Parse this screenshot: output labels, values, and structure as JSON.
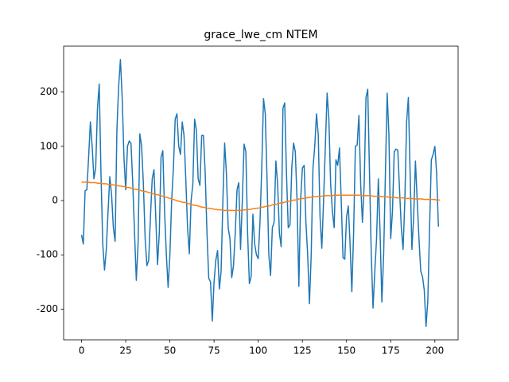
{
  "chart_data": {
    "type": "line",
    "title": "grace_lwe_cm NTEM",
    "xlim": [
      -10.15,
      213.15
    ],
    "xticks": [
      0,
      25,
      50,
      75,
      100,
      125,
      150,
      175,
      200
    ],
    "ylim": [
      -256.6,
      284.6
    ],
    "yticks": [
      -200,
      -100,
      0,
      100,
      200
    ],
    "series": [
      {
        "color": "#1f77b4",
        "values": [
          -63,
          -80,
          18,
          20,
          80,
          145,
          100,
          40,
          60,
          170,
          215,
          50,
          -80,
          -128,
          -90,
          -20,
          44,
          10,
          -50,
          -75,
          130,
          210,
          260,
          190,
          80,
          20,
          100,
          110,
          105,
          30,
          -60,
          -147,
          -80,
          123,
          100,
          30,
          -70,
          -120,
          -110,
          -30,
          40,
          57,
          -30,
          -118,
          -60,
          80,
          92,
          -20,
          -100,
          -160,
          -100,
          0,
          60,
          150,
          160,
          100,
          85,
          145,
          120,
          40,
          -50,
          -98,
          0,
          30,
          150,
          130,
          40,
          28,
          120,
          120,
          50,
          -60,
          -143,
          -150,
          -222,
          -150,
          -110,
          -92,
          -163,
          -130,
          0,
          106,
          50,
          -50,
          -70,
          -142,
          -120,
          -60,
          20,
          33,
          -90,
          0,
          104,
          90,
          -60,
          -153,
          -140,
          -25,
          -80,
          -100,
          -107,
          -40,
          60,
          188,
          160,
          40,
          -100,
          -138,
          -50,
          -40,
          73,
          30,
          -60,
          -85,
          170,
          180,
          50,
          -50,
          -45,
          60,
          106,
          90,
          0,
          -158,
          0,
          60,
          65,
          -40,
          -100,
          -190,
          -100,
          60,
          100,
          160,
          120,
          -30,
          -88,
          0,
          100,
          198,
          150,
          30,
          -20,
          -50,
          75,
          65,
          97,
          0,
          -105,
          -108,
          -30,
          -10,
          -80,
          -168,
          -60,
          100,
          102,
          157,
          30,
          -40,
          30,
          190,
          205,
          50,
          -100,
          -198,
          -130,
          -70,
          40,
          -60,
          -187,
          -100,
          50,
          198,
          120,
          -70,
          -20,
          90,
          95,
          93,
          20,
          -50,
          -90,
          0,
          145,
          190,
          50,
          -90,
          -30,
          73,
          0,
          -70,
          -130,
          -140,
          -165,
          -232,
          -185,
          -50,
          75,
          85,
          100,
          50,
          -48
        ]
      },
      {
        "color": "#ff7f0e",
        "values": [
          34,
          34,
          34,
          34,
          34,
          33,
          33,
          33,
          33,
          32,
          32,
          32,
          31,
          31,
          31,
          30,
          30,
          29,
          29,
          28,
          28,
          27,
          27,
          26,
          26,
          25,
          24,
          24,
          23,
          22,
          21,
          21,
          20,
          19,
          18,
          17,
          17,
          16,
          15,
          14,
          13,
          12,
          11,
          11,
          10,
          9,
          8,
          7,
          6,
          5,
          4,
          3,
          2,
          1,
          0,
          -1,
          -2,
          -3,
          -3,
          -4,
          -5,
          -6,
          -7,
          -8,
          -9,
          -9,
          -10,
          -11,
          -12,
          -12,
          -13,
          -14,
          -14,
          -15,
          -15,
          -16,
          -16,
          -17,
          -17,
          -17,
          -18,
          -18,
          -18,
          -18,
          -18,
          -18,
          -18,
          -18,
          -18,
          -18,
          -18,
          -18,
          -17,
          -17,
          -17,
          -16,
          -16,
          -15,
          -15,
          -14,
          -14,
          -13,
          -12,
          -12,
          -11,
          -10,
          -10,
          -9,
          -8,
          -7,
          -7,
          -6,
          -5,
          -4,
          -4,
          -3,
          -2,
          -1,
          -1,
          0,
          1,
          1,
          2,
          3,
          3,
          4,
          4,
          5,
          5,
          6,
          6,
          7,
          7,
          7,
          8,
          8,
          8,
          9,
          9,
          9,
          9,
          9,
          9,
          10,
          10,
          10,
          10,
          10,
          10,
          10,
          10,
          10,
          10,
          10,
          10,
          10,
          10,
          10,
          10,
          9,
          9,
          9,
          9,
          9,
          9,
          8,
          8,
          8,
          8,
          8,
          7,
          7,
          7,
          7,
          6,
          6,
          6,
          6,
          5,
          5,
          5,
          5,
          5,
          4,
          4,
          4,
          4,
          4,
          3,
          3,
          3,
          3,
          3,
          3,
          2,
          2,
          2,
          2,
          2,
          2,
          2,
          1,
          1,
          1
        ]
      }
    ]
  }
}
